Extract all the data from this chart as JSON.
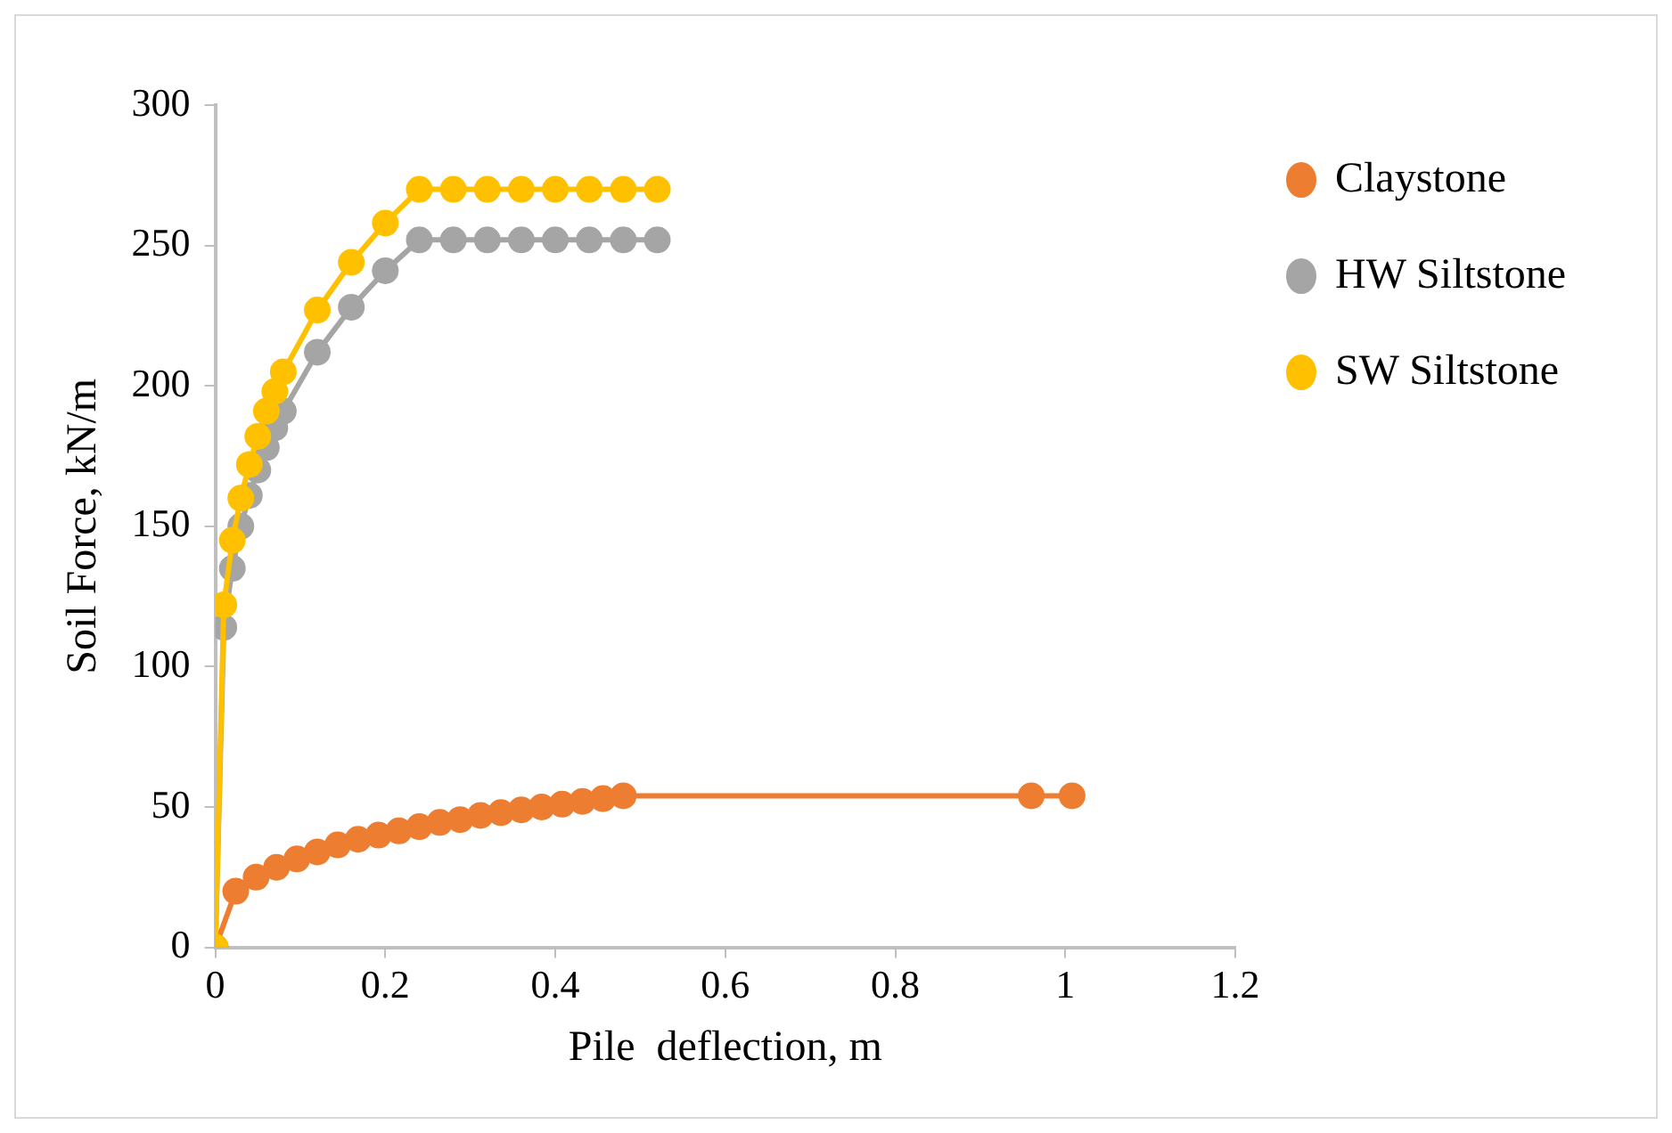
{
  "chart_data": {
    "type": "line",
    "xlabel": "Pile  deflection, m",
    "ylabel": "Soil Force, kN/m",
    "xlim": [
      0,
      1.2
    ],
    "xticks": [
      0,
      0.2,
      0.4,
      0.6,
      0.8,
      1,
      1.2
    ],
    "ylim": [
      0,
      300
    ],
    "yticks": [
      0,
      50,
      100,
      150,
      200,
      250,
      300
    ],
    "grid": false,
    "legend": "right",
    "marker": "circle",
    "line_style": "solid",
    "series": [
      {
        "name": "Claystone",
        "color": "#ed7d31",
        "x": [
          0,
          0.024,
          0.048,
          0.072,
          0.096,
          0.12,
          0.144,
          0.168,
          0.192,
          0.216,
          0.24,
          0.264,
          0.288,
          0.312,
          0.336,
          0.36,
          0.384,
          0.408,
          0.432,
          0.456,
          0.48,
          0.96,
          1.008
        ],
        "values": [
          0,
          20,
          25,
          28.5,
          31.5,
          34,
          36.5,
          38.5,
          40,
          41.5,
          43,
          44.5,
          45.5,
          47,
          48,
          49,
          50,
          51,
          52,
          53,
          54,
          54,
          54
        ]
      },
      {
        "name": "HW Siltstone",
        "color": "#a5a5a5",
        "x": [
          0,
          0.01,
          0.02,
          0.03,
          0.04,
          0.05,
          0.06,
          0.07,
          0.08,
          0.12,
          0.16,
          0.2,
          0.24,
          0.28,
          0.32,
          0.36,
          0.4,
          0.44,
          0.48,
          0.52
        ],
        "values": [
          0,
          114,
          135,
          150,
          161,
          170,
          178,
          185,
          191,
          212,
          228,
          241,
          252,
          252,
          252,
          252,
          252,
          252,
          252,
          252
        ]
      },
      {
        "name": "SW Siltstone",
        "color": "#ffc000",
        "x": [
          0,
          0.01,
          0.02,
          0.03,
          0.04,
          0.05,
          0.06,
          0.07,
          0.08,
          0.12,
          0.16,
          0.2,
          0.24,
          0.28,
          0.32,
          0.36,
          0.4,
          0.44,
          0.48,
          0.52
        ],
        "values": [
          0,
          122,
          145,
          160,
          172,
          182,
          191,
          198,
          205,
          227,
          244,
          258,
          270,
          270,
          270,
          270,
          270,
          270,
          270,
          270
        ]
      }
    ]
  }
}
